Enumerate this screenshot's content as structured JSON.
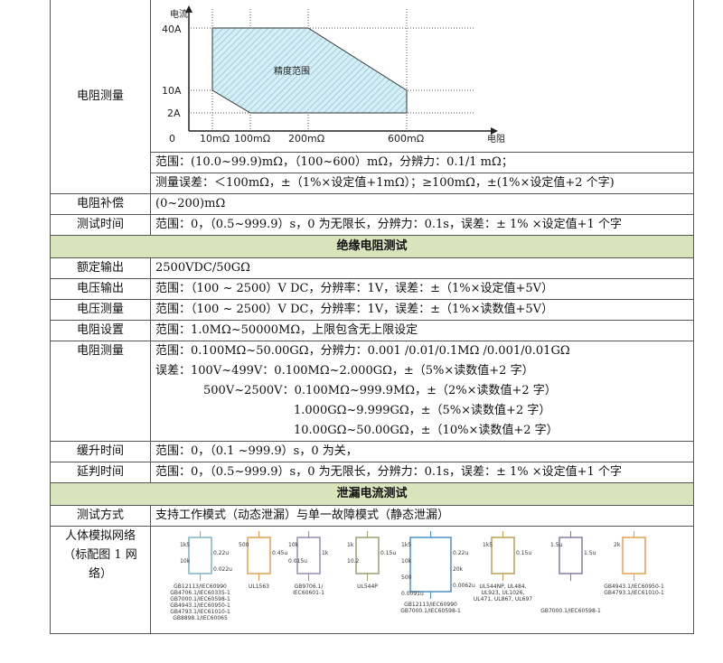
{
  "resistance_section": {
    "label": "电阻测量",
    "chart": {
      "y_label": "电流",
      "x_label": "电阻",
      "y_ticks": [
        "40A",
        "10A",
        "2A"
      ],
      "x_ticks": [
        "0",
        "10mΩ",
        "100mΩ",
        "200mΩ",
        "600mΩ"
      ],
      "region_label": "精度范围",
      "fill": "#bfe3ee"
    },
    "range": "范围：(10.0~99.9)mΩ，（100~600）mΩ，分辨力：0.1/1 mΩ；",
    "error": "测量误差：＜100mΩ，±（1%×设定值+1mΩ）；≥100mΩ，±(1%×设定值+2 个字)",
    "comp_label": "电阻补偿",
    "comp": "(0~200)mΩ",
    "time_label": "测试时间",
    "time": "范围：0，（0.5~999.9）s，0 为无限长，分辨力：0.1s，误差：± 1% ×设定值+1 个字"
  },
  "insulation": {
    "header": "绝缘电阻测试",
    "rows": [
      {
        "label": "额定输出",
        "value": "2500VDC/50GΩ"
      },
      {
        "label": "电压输出",
        "value": "范围：（100 ~ 2500）V DC，分辨率：1V，误差：±（1%×设定值+5V）"
      },
      {
        "label": "电压测量",
        "value": "范围：（100 ~ 2500）V DC，分辨率：1V，误差：±（1%×读数值+5V）"
      },
      {
        "label": "电阻设置",
        "value": "范围：1.0MΩ~50000MΩ，上限包含无上限设定"
      }
    ],
    "measure_label": "电阻测量",
    "measure_lines": [
      "范围：0.100MΩ~50.00GΩ，分辨力：0.001 /0.01/0.1MΩ /0.001/0.01GΩ",
      "误差：100V~499V：0.100MΩ~2.000GΩ，±（5%×读数值+2 字）",
      "500V~2500V：0.100MΩ~999.9MΩ，±（2%×读数值+2 字）",
      "1.000GΩ~9.999GΩ，±（5%×读数值+2 字）",
      "10.00GΩ~50.00GΩ，±（10%×读数值+2 字）"
    ],
    "ramp_label": "缓升时间",
    "ramp": "范围：0，（0.1 ~999.9）s，0 为关，",
    "delay_label": "延判时间",
    "delay": "范围：0，（0.5~999.9）s，0 为无限长，分辨力：0.1s，误差：± 1% ×设定值+1 个字"
  },
  "leakage": {
    "header": "泄漏电流测试",
    "mode_label": "测试方式",
    "mode": "支持工作模式（动态泄漏）与单一故障模式（静态泄漏）",
    "network_label": "人体模拟网络（标配图 1 网络）",
    "networks": [
      {
        "color": "#7fb3c0",
        "values": [
          "1k5",
          "0.22u",
          "10k",
          "0.022u"
        ],
        "caption": [
          "GB12113/IEC60990",
          "GB4706.1/IEC60335-1",
          "GB7000.1/IEC60598-1",
          "GB4943.1/IEC60950-1",
          "GB4793.1/IEC61010-1",
          "GB8898.1/IEC60065"
        ]
      },
      {
        "color": "#e0a050",
        "values": [
          "500",
          "0.45u"
        ],
        "caption": [
          "UL1563"
        ]
      },
      {
        "color": "#9a8ab0",
        "values": [
          "10k",
          "1k",
          "0.015u"
        ],
        "caption": [
          "GB9706.1/",
          "IEC60601-1"
        ]
      },
      {
        "color": "#9aa070",
        "values": [
          "1k",
          "0.15u",
          "10.2"
        ],
        "caption": [
          "UL544P"
        ]
      },
      {
        "color": "#4a90c8",
        "values": [
          "1k5",
          "0.22u",
          "10k",
          "20k",
          "500",
          "0.0062u",
          "0.0091u"
        ],
        "caption": [
          "GB12113/IEC60990",
          "GB7000.1/IEC60598-1"
        ]
      },
      {
        "color": "#b8a050",
        "values": [
          "1k5",
          "0.15u"
        ],
        "caption": [
          "UL544NP, UL484,",
          "UL923, UL1026,",
          "UL471, UL867, UL697"
        ]
      },
      {
        "color": "#8a7aa0",
        "values": [
          "1.5u",
          "1.5u"
        ],
        "caption": [
          "GB7000.1/IEC60598-1"
        ]
      },
      {
        "color": "#e0a050",
        "values": [
          "2k"
        ],
        "caption": [
          "GB4943.1/IEC60950-1",
          "GB4793.1/IEC61010-1"
        ]
      }
    ]
  }
}
